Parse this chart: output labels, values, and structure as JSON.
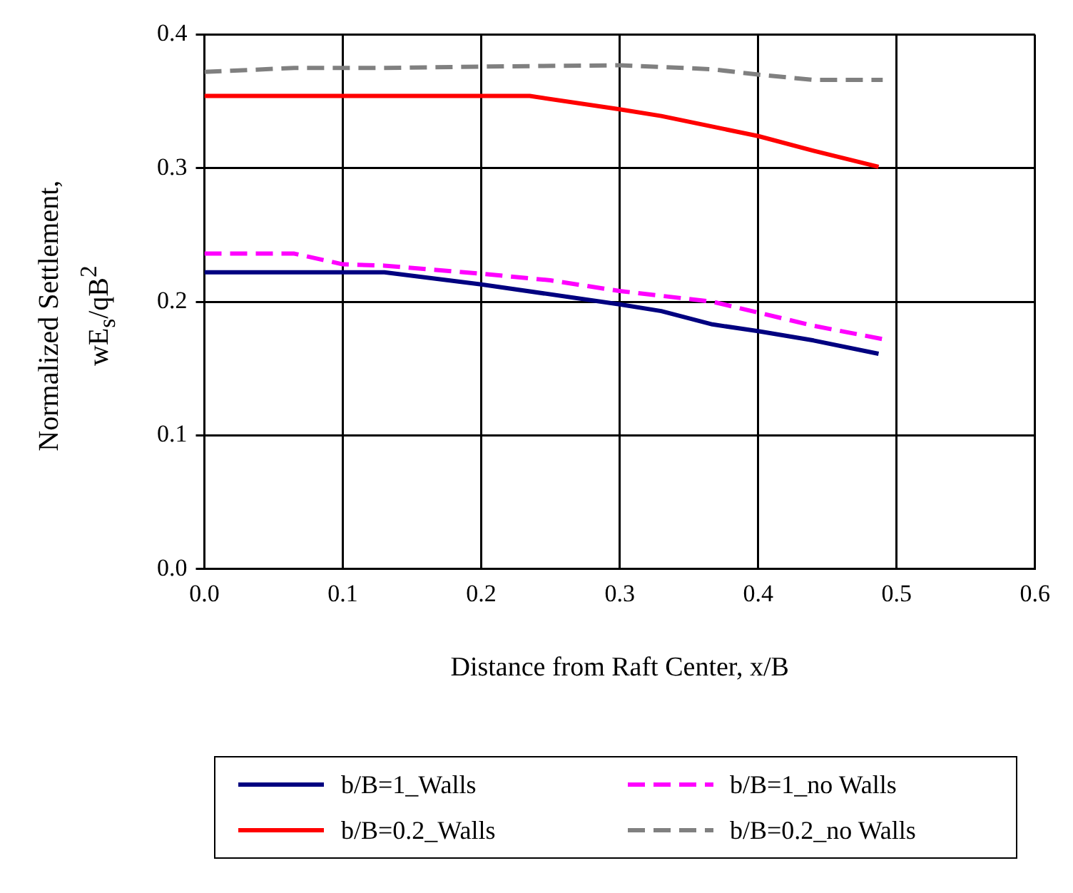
{
  "chart_data": {
    "type": "line",
    "xlabel": "Distance from Raft Center, x/B",
    "ylabel": "Normalized Settlement, wE$_{s}$/qB$^{2}$",
    "xlim": [
      0,
      0.6
    ],
    "xticks": [
      {
        "value": 0,
        "label": "0.0"
      },
      0.1,
      0.2,
      0.3,
      0.4,
      0.5,
      0.6
    ],
    "ylim": [
      0,
      0.4
    ],
    "yticks": [
      {
        "value": 0,
        "label": "0.0"
      },
      0.1,
      0.2,
      0.3,
      0.4
    ],
    "grid": true,
    "legend": "bottom",
    "marker": "none",
    "series": [
      {
        "name": "b/B=1_Walls",
        "color": "#000080",
        "line_style": "solid",
        "x": [
          0,
          0.13,
          0.2,
          0.3,
          0.33,
          0.367,
          0.4,
          0.44,
          0.487
        ],
        "values": [
          0.222,
          0.222,
          0.213,
          0.198,
          0.193,
          0.183,
          0.178,
          0.171,
          0.161
        ]
      },
      {
        "name": "b/B=1_no Walls",
        "color": "#ff00ff",
        "line_style": "dashed",
        "x": [
          0,
          0.065,
          0.1,
          0.13,
          0.2,
          0.25,
          0.3,
          0.367,
          0.44,
          0.49
        ],
        "values": [
          0.236,
          0.236,
          0.228,
          0.227,
          0.221,
          0.216,
          0.208,
          0.2,
          0.182,
          0.172
        ]
      },
      {
        "name": "b/B=0.2_Walls",
        "color": "#ff0000",
        "line_style": "solid",
        "x": [
          0,
          0.235,
          0.3,
          0.33,
          0.4,
          0.44,
          0.487
        ],
        "values": [
          0.354,
          0.354,
          0.344,
          0.339,
          0.324,
          0.313,
          0.301
        ]
      },
      {
        "name": "b/B=0.2_no Walls",
        "color": "#808080",
        "line_style": "dashed",
        "x": [
          0,
          0.065,
          0.13,
          0.2,
          0.3,
          0.367,
          0.4,
          0.44,
          0.49
        ],
        "values": [
          0.372,
          0.375,
          0.375,
          0.376,
          0.377,
          0.374,
          0.37,
          0.366,
          0.366
        ]
      }
    ]
  }
}
